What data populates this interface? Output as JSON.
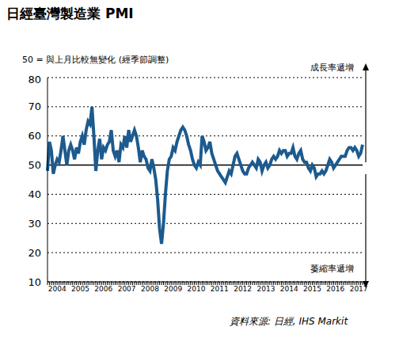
{
  "chart_data": {
    "type": "line",
    "title": "日經臺灣製造業 PMI",
    "subtitle": "50 = 與上月比較無變化 (經季節調整)",
    "source": "資料來源: 日經, IHS Markit",
    "annotations": [
      "成長率遞增",
      "萎縮率遞增"
    ],
    "color": "#1d5a8e",
    "grid": true,
    "reference_line": 50,
    "ylim": [
      10,
      80
    ],
    "yticks": [
      10,
      20,
      30,
      40,
      50,
      60,
      70,
      80
    ],
    "categories": [
      null,
      null,
      null,
      null,
      null,
      "2004",
      null,
      null,
      null,
      null,
      null,
      null,
      null,
      null,
      null,
      null,
      null,
      "2005",
      null,
      null,
      null,
      null,
      null,
      null,
      null,
      null,
      null,
      null,
      null,
      "2006",
      null,
      null,
      null,
      null,
      null,
      null,
      null,
      null,
      null,
      null,
      null,
      "2007",
      null,
      null,
      null,
      null,
      null,
      null,
      null,
      null,
      null,
      null,
      null,
      "2008",
      null,
      null,
      null,
      null,
      null,
      null,
      null,
      null,
      null,
      null,
      null,
      "2009",
      null,
      null,
      null,
      null,
      null,
      null,
      null,
      null,
      null,
      null,
      null,
      "2010",
      null,
      null,
      null,
      null,
      null,
      null,
      null,
      null,
      null,
      null,
      null,
      "2011",
      null,
      null,
      null,
      null,
      null,
      null,
      null,
      null,
      null,
      null,
      null,
      "2012",
      null,
      null,
      null,
      null,
      null,
      null,
      null,
      null,
      null,
      null,
      null,
      "2013",
      null,
      null,
      null,
      null,
      null,
      null,
      null,
      null,
      null,
      null,
      null,
      "2014",
      null,
      null,
      null,
      null,
      null,
      null,
      null,
      null,
      null,
      null,
      null,
      "2015",
      null,
      null,
      null,
      null,
      null,
      null,
      null,
      null,
      null,
      null,
      null,
      "2016",
      null,
      null,
      null,
      null,
      null,
      null,
      null,
      null,
      null,
      null,
      null,
      "2017",
      null,
      null
    ],
    "values": [
      48,
      58,
      55,
      47,
      50,
      52,
      51,
      55,
      60,
      55,
      50,
      55,
      57,
      55,
      52,
      56,
      54,
      58,
      60,
      57,
      62,
      65,
      64,
      70,
      60,
      48,
      55,
      59,
      52,
      56,
      55,
      57,
      58,
      62,
      55,
      53,
      55,
      51,
      57,
      56,
      60,
      56,
      62,
      58,
      60,
      62,
      60,
      56,
      51,
      55,
      53,
      52,
      49,
      48,
      52,
      49,
      45,
      38,
      28,
      23,
      30,
      40,
      48,
      52,
      53,
      56,
      55,
      58,
      60,
      62,
      63,
      62,
      60,
      57,
      55,
      52,
      50,
      49,
      51,
      50,
      60,
      58,
      55,
      56,
      58,
      54,
      52,
      50,
      48,
      47,
      46,
      45,
      44,
      46,
      48,
      47,
      50,
      53,
      54,
      52,
      50,
      48,
      47,
      47,
      49,
      50,
      51,
      50,
      49,
      52,
      51,
      48,
      50,
      51,
      49,
      50,
      52,
      53,
      52,
      53,
      55,
      54,
      55,
      55,
      53,
      54,
      54,
      56,
      53,
      52,
      54,
      55,
      52,
      51,
      51,
      49,
      48,
      50,
      49,
      46,
      47,
      47,
      48,
      47,
      48,
      50,
      52,
      51,
      49,
      50,
      51,
      52,
      53,
      53,
      53,
      55,
      56,
      56,
      55,
      56,
      55,
      53,
      54,
      57
    ]
  }
}
